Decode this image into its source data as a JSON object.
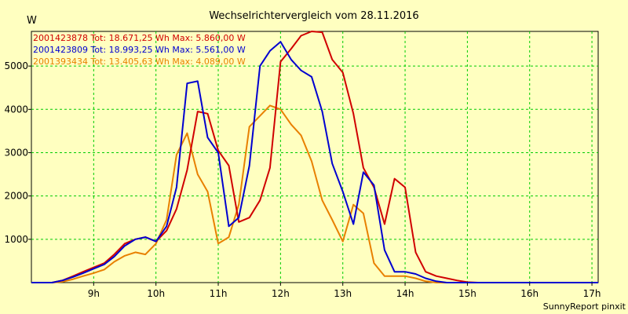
{
  "chart_data": {
    "type": "line",
    "title": "Wechselrichtervergleich vom 28.11.2016",
    "ylabel": "W",
    "footer": "SunnyReport pinxit",
    "xlim": [
      8.0,
      17.1
    ],
    "ylim": [
      0,
      5800
    ],
    "x_ticks": [
      {
        "value": 9,
        "label": "9h"
      },
      {
        "value": 10,
        "label": "10h"
      },
      {
        "value": 11,
        "label": "11h"
      },
      {
        "value": 12,
        "label": "12h"
      },
      {
        "value": 13,
        "label": "13h"
      },
      {
        "value": 14,
        "label": "14h"
      },
      {
        "value": 15,
        "label": "15h"
      },
      {
        "value": 16,
        "label": "16h"
      },
      {
        "value": 17,
        "label": "17h"
      }
    ],
    "y_ticks": [
      {
        "value": 1000,
        "label": "1000"
      },
      {
        "value": 2000,
        "label": "2000"
      },
      {
        "value": 3000,
        "label": "3000"
      },
      {
        "value": 4000,
        "label": "4000"
      },
      {
        "value": 5000,
        "label": "5000"
      }
    ],
    "grid": true,
    "legend_position": "top-left",
    "series": [
      {
        "name": "2001423878 Tot: 18.671,25 Wh Max: 5.860,00 W",
        "color": "#d00000",
        "points": [
          [
            8.0,
            0
          ],
          [
            8.33,
            0
          ],
          [
            8.5,
            50
          ],
          [
            8.67,
            150
          ],
          [
            8.83,
            250
          ],
          [
            9.0,
            350
          ],
          [
            9.17,
            450
          ],
          [
            9.33,
            650
          ],
          [
            9.5,
            900
          ],
          [
            9.67,
            1000
          ],
          [
            9.83,
            1050
          ],
          [
            10.0,
            950
          ],
          [
            10.17,
            1200
          ],
          [
            10.33,
            1700
          ],
          [
            10.5,
            2600
          ],
          [
            10.67,
            3950
          ],
          [
            10.83,
            3900
          ],
          [
            11.0,
            3050
          ],
          [
            11.17,
            2700
          ],
          [
            11.33,
            1400
          ],
          [
            11.5,
            1500
          ],
          [
            11.67,
            1900
          ],
          [
            11.83,
            2650
          ],
          [
            12.0,
            5100
          ],
          [
            12.17,
            5400
          ],
          [
            12.33,
            5700
          ],
          [
            12.5,
            5860
          ],
          [
            12.67,
            5780
          ],
          [
            12.83,
            5150
          ],
          [
            13.0,
            4850
          ],
          [
            13.17,
            3900
          ],
          [
            13.33,
            2650
          ],
          [
            13.5,
            2200
          ],
          [
            13.67,
            1350
          ],
          [
            13.83,
            2400
          ],
          [
            14.0,
            2200
          ],
          [
            14.17,
            700
          ],
          [
            14.33,
            250
          ],
          [
            14.5,
            150
          ],
          [
            14.67,
            100
          ],
          [
            14.83,
            50
          ],
          [
            15.0,
            10
          ],
          [
            15.17,
            0
          ],
          [
            17.1,
            0
          ]
        ]
      },
      {
        "name": "2001423809 Tot: 18.993,25 Wh Max: 5.561,00 W",
        "color": "#0000d0",
        "points": [
          [
            8.0,
            0
          ],
          [
            8.33,
            0
          ],
          [
            8.5,
            50
          ],
          [
            8.67,
            130
          ],
          [
            8.83,
            220
          ],
          [
            9.0,
            320
          ],
          [
            9.17,
            420
          ],
          [
            9.33,
            600
          ],
          [
            9.5,
            850
          ],
          [
            9.67,
            1000
          ],
          [
            9.83,
            1050
          ],
          [
            10.0,
            950
          ],
          [
            10.17,
            1300
          ],
          [
            10.33,
            2200
          ],
          [
            10.5,
            4600
          ],
          [
            10.67,
            4650
          ],
          [
            10.83,
            3350
          ],
          [
            11.0,
            3000
          ],
          [
            11.17,
            1300
          ],
          [
            11.33,
            1500
          ],
          [
            11.5,
            2700
          ],
          [
            11.67,
            5000
          ],
          [
            11.83,
            5350
          ],
          [
            12.0,
            5561
          ],
          [
            12.17,
            5150
          ],
          [
            12.33,
            4900
          ],
          [
            12.5,
            4750
          ],
          [
            12.67,
            3950
          ],
          [
            12.83,
            2750
          ],
          [
            13.0,
            2100
          ],
          [
            13.17,
            1350
          ],
          [
            13.33,
            2550
          ],
          [
            13.5,
            2250
          ],
          [
            13.67,
            750
          ],
          [
            13.83,
            250
          ],
          [
            14.0,
            250
          ],
          [
            14.17,
            200
          ],
          [
            14.33,
            100
          ],
          [
            14.5,
            30
          ],
          [
            14.67,
            0
          ],
          [
            17.1,
            0
          ]
        ]
      },
      {
        "name": "2001393434 Tot: 13.405,63 Wh Max: 4.089,00 W",
        "color": "#e88000",
        "points": [
          [
            8.0,
            0
          ],
          [
            8.33,
            0
          ],
          [
            8.5,
            20
          ],
          [
            8.67,
            80
          ],
          [
            8.83,
            150
          ],
          [
            9.0,
            220
          ],
          [
            9.17,
            300
          ],
          [
            9.33,
            480
          ],
          [
            9.5,
            620
          ],
          [
            9.67,
            700
          ],
          [
            9.83,
            650
          ],
          [
            10.0,
            900
          ],
          [
            10.17,
            1450
          ],
          [
            10.33,
            2950
          ],
          [
            10.5,
            3450
          ],
          [
            10.67,
            2500
          ],
          [
            10.83,
            2100
          ],
          [
            11.0,
            900
          ],
          [
            11.17,
            1050
          ],
          [
            11.33,
            1800
          ],
          [
            11.5,
            3600
          ],
          [
            11.67,
            3850
          ],
          [
            11.83,
            4089
          ],
          [
            12.0,
            4000
          ],
          [
            12.17,
            3650
          ],
          [
            12.33,
            3400
          ],
          [
            12.5,
            2800
          ],
          [
            12.67,
            1900
          ],
          [
            12.83,
            1450
          ],
          [
            13.0,
            950
          ],
          [
            13.17,
            1800
          ],
          [
            13.33,
            1600
          ],
          [
            13.5,
            450
          ],
          [
            13.67,
            150
          ],
          [
            13.83,
            150
          ],
          [
            14.0,
            150
          ],
          [
            14.17,
            100
          ],
          [
            14.33,
            30
          ],
          [
            14.5,
            0
          ],
          [
            17.1,
            0
          ]
        ]
      }
    ]
  }
}
